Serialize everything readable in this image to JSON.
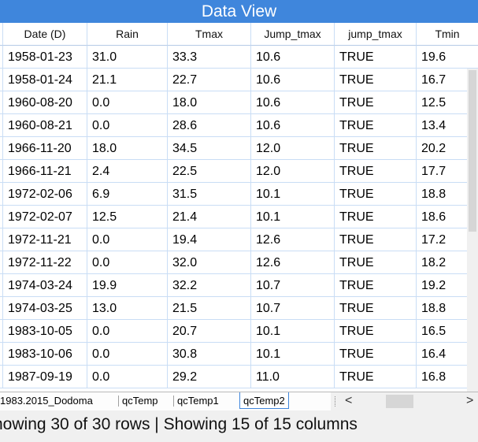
{
  "window": {
    "title": "Data View"
  },
  "table": {
    "columns": [
      "Date (D)",
      "Rain",
      "Tmax",
      "Jump_tmax",
      "jump_tmax",
      "Tmin"
    ],
    "rows": [
      [
        "1958-01-23",
        "31.0",
        "33.3",
        "10.6",
        "TRUE",
        "19.6"
      ],
      [
        "1958-01-24",
        "21.1",
        "22.7",
        "10.6",
        "TRUE",
        "16.7"
      ],
      [
        "1960-08-20",
        "0.0",
        "18.0",
        "10.6",
        "TRUE",
        "12.5"
      ],
      [
        "1960-08-21",
        "0.0",
        "28.6",
        "10.6",
        "TRUE",
        "13.4"
      ],
      [
        "1966-11-20",
        "18.0",
        "34.5",
        "12.0",
        "TRUE",
        "20.2"
      ],
      [
        "1966-11-21",
        "2.4",
        "22.5",
        "12.0",
        "TRUE",
        "17.7"
      ],
      [
        "1972-02-06",
        "6.9",
        "31.5",
        "10.1",
        "TRUE",
        "18.8"
      ],
      [
        "1972-02-07",
        "12.5",
        "21.4",
        "10.1",
        "TRUE",
        "18.6"
      ],
      [
        "1972-11-21",
        "0.0",
        "19.4",
        "12.6",
        "TRUE",
        "17.2"
      ],
      [
        "1972-11-22",
        "0.0",
        "32.0",
        "12.6",
        "TRUE",
        "18.2"
      ],
      [
        "1974-03-24",
        "19.9",
        "32.2",
        "10.7",
        "TRUE",
        "19.2"
      ],
      [
        "1974-03-25",
        "13.0",
        "21.5",
        "10.7",
        "TRUE",
        "18.8"
      ],
      [
        "1983-10-05",
        "0.0",
        "20.7",
        "10.1",
        "TRUE",
        "16.5"
      ],
      [
        "1983-10-06",
        "0.0",
        "30.8",
        "10.1",
        "TRUE",
        "16.4"
      ],
      [
        "1987-09-19",
        "0.0",
        "29.2",
        "11.0",
        "TRUE",
        "16.8"
      ]
    ]
  },
  "sheets": {
    "tabs": [
      "1983.2015_Dodoma",
      "qcTemp",
      "qcTemp1",
      "qcTemp2"
    ],
    "active": "qcTemp2",
    "scroll_left_icon": "<",
    "scroll_right_icon": ">"
  },
  "status": {
    "text": "howing 30 of 30 rows | Showing 15 of 15 columns"
  },
  "colors": {
    "title_bar": "#3f86dc",
    "grid_line": "#c9ddf5"
  }
}
